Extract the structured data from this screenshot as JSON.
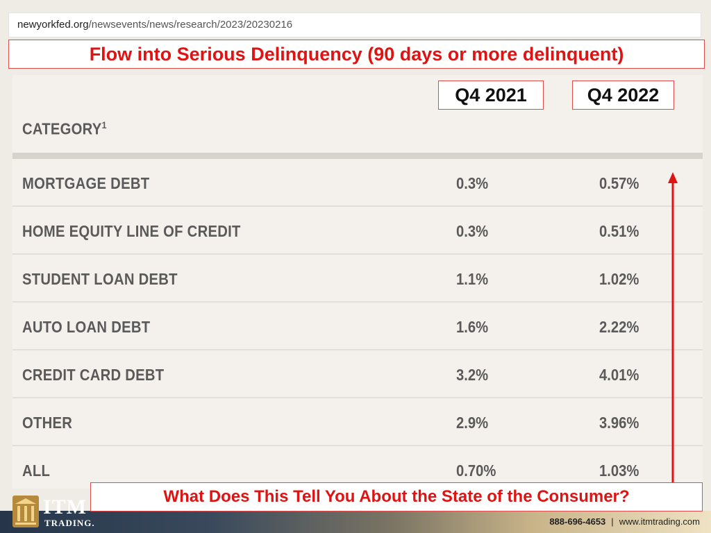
{
  "browser": {
    "url_host": "newyorkfed.org",
    "url_path": "/newsevents/news/research/2023/20230216"
  },
  "slide": {
    "title": "Flow into Serious Delinquency (90 days or more delinquent)",
    "question": "What Does This Tell You About the State of the Consumer?"
  },
  "table": {
    "category_header": "CATEGORY",
    "category_footnote": "1",
    "col1_header": "Q4 2021",
    "col2_header": "Q4 2022",
    "rows": [
      {
        "label": "MORTGAGE DEBT",
        "q4_2021": "0.3%",
        "q4_2022": "0.57%"
      },
      {
        "label": "HOME EQUITY LINE OF CREDIT",
        "q4_2021": "0.3%",
        "q4_2022": "0.51%"
      },
      {
        "label": "STUDENT LOAN DEBT",
        "q4_2021": "1.1%",
        "q4_2022": "1.02%"
      },
      {
        "label": "AUTO LOAN DEBT",
        "q4_2021": "1.6%",
        "q4_2022": "2.22%"
      },
      {
        "label": "CREDIT CARD DEBT",
        "q4_2021": "3.2%",
        "q4_2022": "4.01%"
      },
      {
        "label": "OTHER",
        "q4_2021": "2.9%",
        "q4_2022": "3.96%"
      },
      {
        "label": "ALL",
        "q4_2021": "0.70%",
        "q4_2022": "1.03%"
      }
    ]
  },
  "footer": {
    "logo_name": "ITM",
    "logo_sub": "TRADING.",
    "phone": "888-696-4653",
    "separator": "|",
    "website": "www.itmtrading.com"
  },
  "colors": {
    "accent_red": "#e01313",
    "text_gray": "#5a5a5a"
  }
}
